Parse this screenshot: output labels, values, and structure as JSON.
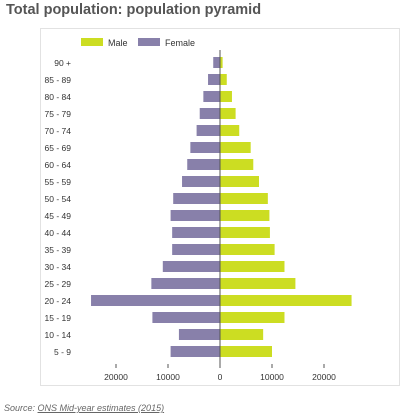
{
  "page": {
    "title": "Total population: population pyramid",
    "source_prefix": "Source: ",
    "source_link": "ONS Mid-year estimates (2015)"
  },
  "colors": {
    "male": "#ccdd22",
    "female": "#8880aa",
    "axis": "#555555",
    "text": "#333333"
  },
  "chart_data": {
    "type": "bar",
    "orientation": "horizontal",
    "layout": "population-pyramid",
    "categories": [
      "90 +",
      "85 - 89",
      "80 - 84",
      "75 - 79",
      "70 - 74",
      "65 - 69",
      "60 - 64",
      "55 - 59",
      "50 - 54",
      "45 - 49",
      "40 - 44",
      "35 - 39",
      "30 - 34",
      "25 - 29",
      "20 - 24",
      "15 - 19",
      "10 - 14",
      "5 - 9"
    ],
    "series": [
      {
        "name": "Male",
        "color": "#ccdd22",
        "values": [
          500,
          1300,
          2300,
          3000,
          3700,
          5900,
          6400,
          7500,
          9200,
          9500,
          9600,
          10500,
          12400,
          14500,
          25300,
          12400,
          8300,
          10000
        ]
      },
      {
        "name": "Female",
        "color": "#8880aa",
        "values": [
          1300,
          2300,
          3200,
          3900,
          4500,
          5700,
          6300,
          7300,
          9000,
          9500,
          9200,
          9200,
          11000,
          13200,
          24800,
          13000,
          7900,
          9500
        ]
      }
    ],
    "xlim": [
      -27000,
      27000
    ],
    "xticks": [
      -20000,
      -10000,
      0,
      10000,
      20000
    ],
    "xtick_labels": [
      "20000",
      "10000",
      "0",
      "10000",
      "20000"
    ],
    "xlabel": "",
    "ylabel": "",
    "legend": {
      "position": "top-left",
      "entries": [
        "Male",
        "Female"
      ]
    },
    "grid": false
  }
}
